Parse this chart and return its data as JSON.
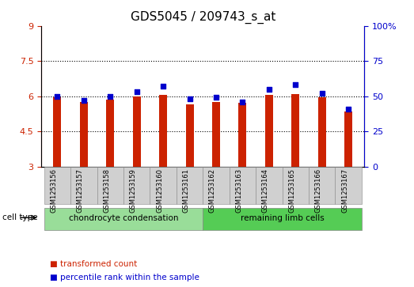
{
  "title": "GDS5045 / 209743_s_at",
  "samples": [
    "GSM1253156",
    "GSM1253157",
    "GSM1253158",
    "GSM1253159",
    "GSM1253160",
    "GSM1253161",
    "GSM1253162",
    "GSM1253163",
    "GSM1253164",
    "GSM1253165",
    "GSM1253166",
    "GSM1253167"
  ],
  "transformed_counts": [
    5.95,
    5.75,
    5.85,
    6.0,
    6.05,
    5.65,
    5.75,
    5.7,
    6.05,
    6.1,
    5.95,
    5.35
  ],
  "percentile_ranks": [
    50,
    47,
    50,
    53,
    57,
    48,
    49,
    46,
    55,
    58,
    52,
    41
  ],
  "y_min": 3,
  "y_max": 9,
  "y_ticks": [
    3,
    4.5,
    6,
    7.5,
    9
  ],
  "y2_ticks": [
    0,
    25,
    50,
    75,
    100
  ],
  "bar_color": "#cc2200",
  "dot_color": "#0000cc",
  "bar_bottom": 3,
  "cell_type_groups": [
    {
      "label": "chondrocyte condensation",
      "start": 0,
      "end": 5,
      "color": "#99dd99"
    },
    {
      "label": "remaining limb cells",
      "start": 6,
      "end": 11,
      "color": "#55cc55"
    }
  ],
  "cell_type_label": "cell type",
  "legend_items": [
    {
      "label": "transformed count",
      "color": "#cc2200"
    },
    {
      "label": "percentile rank within the sample",
      "color": "#0000cc"
    }
  ],
  "bg_color": "#ffffff",
  "plot_bg": "#ffffff",
  "tick_label_color_left": "#cc2200",
  "tick_label_color_right": "#0000cc",
  "title_fontsize": 11,
  "axis_fontsize": 8,
  "sample_box_color": "#d0d0d0"
}
